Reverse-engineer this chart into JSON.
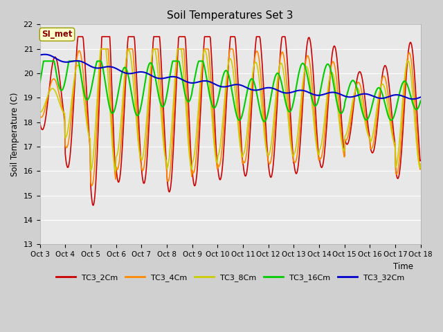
{
  "title": "Soil Temperatures Set 3",
  "xlabel": "Time",
  "ylabel": "Soil Temperature (C)",
  "ylim": [
    13.0,
    22.0
  ],
  "yticks": [
    13.0,
    14.0,
    15.0,
    16.0,
    17.0,
    18.0,
    19.0,
    20.0,
    21.0,
    22.0
  ],
  "xtick_labels": [
    "Oct 3",
    "Oct 4",
    "Oct 5",
    "Oct 6",
    "Oct 7",
    "Oct 8",
    "Oct 9",
    "Oct 10",
    "Oct 11",
    "Oct 12",
    "Oct 13",
    "Oct 14",
    "Oct 15",
    "Oct 16",
    "Oct 17",
    "Oct 18"
  ],
  "series_colors": {
    "TC3_2Cm": "#cc0000",
    "TC3_4Cm": "#ff8800",
    "TC3_8Cm": "#cccc00",
    "TC3_16Cm": "#00cc00",
    "TC3_32Cm": "#0000cc"
  },
  "fig_bg": "#d0d0d0",
  "ax_bg": "#e8e8e8",
  "annotation_text": "SI_met",
  "annotation_color": "#880000",
  "annotation_bg": "#ffffcc",
  "annotation_border": "#999900"
}
